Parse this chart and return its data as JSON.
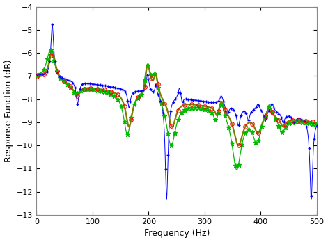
{
  "xlabel": "Frequency (Hz)",
  "ylabel": "Response Function (dB)",
  "xlim": [
    0,
    500
  ],
  "ylim": [
    -13,
    -4
  ],
  "yticks": [
    -13,
    -12,
    -11,
    -10,
    -9,
    -8,
    -7,
    -6,
    -5,
    -4
  ],
  "xticks": [
    0,
    100,
    200,
    300,
    400,
    500
  ],
  "figsize": [
    4.71,
    3.48
  ],
  "dpi": 100,
  "bg_color": "#ffffff",
  "col_exp": "#808000",
  "col_upd": "#0000ff",
  "col_ana": "#00bb00",
  "col_red": "#ff0000"
}
